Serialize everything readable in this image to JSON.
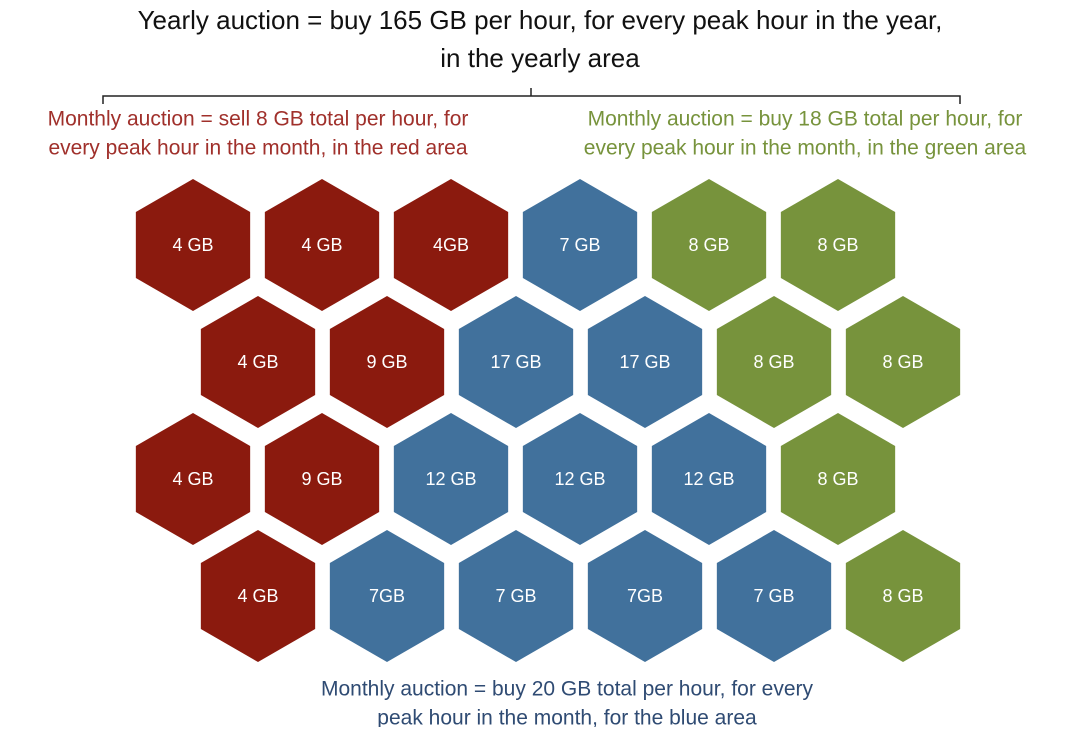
{
  "title": [
    "Yearly auction = buy 165 GB per hour, for every peak hour in the year,",
    "in the yearly area"
  ],
  "captions": [
    {
      "color": "#a0302b",
      "lines": [
        "Monthly auction = sell 8 GB total per hour,  for",
        "every peak hour in the month, in the red area"
      ]
    },
    {
      "color": "#77933c",
      "lines": [
        "Monthly auction = buy 18 GB total per hour, for",
        "every peak hour in the month, in the green area"
      ]
    },
    {
      "color": "#2f4b73",
      "lines": [
        "Monthly auction = buy 20 GB total per hour, for every",
        "peak hour in the month, for the blue area"
      ]
    }
  ],
  "rows": [
    [
      {
        "label": "4 GB",
        "color": "#8b1a0e"
      },
      {
        "label": "4 GB",
        "color": "#8b1a0e"
      },
      {
        "label": "4GB",
        "color": "#8b1a0e"
      },
      {
        "label": "7 GB",
        "color": "#41719c"
      },
      {
        "label": "8 GB",
        "color": "#77933c"
      },
      {
        "label": "8 GB",
        "color": "#77933c"
      }
    ],
    [
      {
        "label": "4 GB",
        "color": "#8b1a0e"
      },
      {
        "label": "9 GB",
        "color": "#8b1a0e"
      },
      {
        "label": "17 GB",
        "color": "#41719c"
      },
      {
        "label": "17 GB",
        "color": "#41719c"
      },
      {
        "label": "8 GB",
        "color": "#77933c"
      },
      {
        "label": "8 GB",
        "color": "#77933c"
      }
    ],
    [
      {
        "label": "4 GB",
        "color": "#8b1a0e"
      },
      {
        "label": "9 GB",
        "color": "#8b1a0e"
      },
      {
        "label": "12 GB",
        "color": "#41719c"
      },
      {
        "label": "12 GB",
        "color": "#41719c"
      },
      {
        "label": "12 GB",
        "color": "#41719c"
      },
      {
        "label": "8 GB",
        "color": "#77933c"
      }
    ],
    [
      {
        "label": "4 GB",
        "color": "#8b1a0e"
      },
      {
        "label": "7GB",
        "color": "#41719c"
      },
      {
        "label": "7 GB",
        "color": "#41719c"
      },
      {
        "label": "7GB",
        "color": "#41719c"
      },
      {
        "label": "7 GB",
        "color": "#41719c"
      },
      {
        "label": "8 GB",
        "color": "#77933c"
      }
    ]
  ]
}
